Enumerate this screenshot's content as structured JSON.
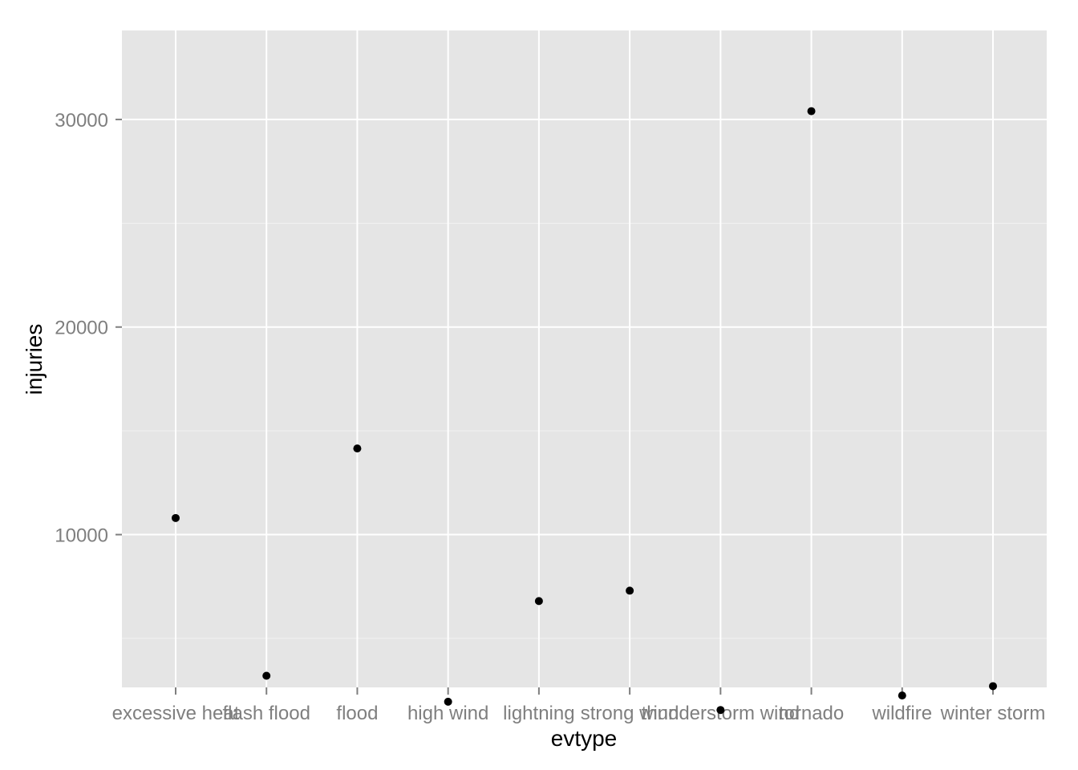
{
  "chart_data": {
    "type": "scatter",
    "title": "",
    "xlabel": "evtype",
    "ylabel": "injuries",
    "categories": [
      "excessive heat",
      "flash flood",
      "flood",
      "high wind",
      "lightning",
      "strong wind",
      "thunderstorm wind",
      "tornado",
      "wildfire",
      "winter storm"
    ],
    "values": [
      10800,
      3200,
      14150,
      1950,
      6800,
      7300,
      1550,
      30400,
      2250,
      2700
    ],
    "yticks": [
      10000,
      20000,
      30000
    ],
    "ylim": [
      0,
      32000
    ],
    "grid": true,
    "legend": "none",
    "colors": {
      "panel": "#e5e5e5",
      "grid_major": "#ffffff",
      "grid_minor": "#f2f2f2",
      "point": "#000000",
      "tick": "#7f7f7f"
    }
  }
}
